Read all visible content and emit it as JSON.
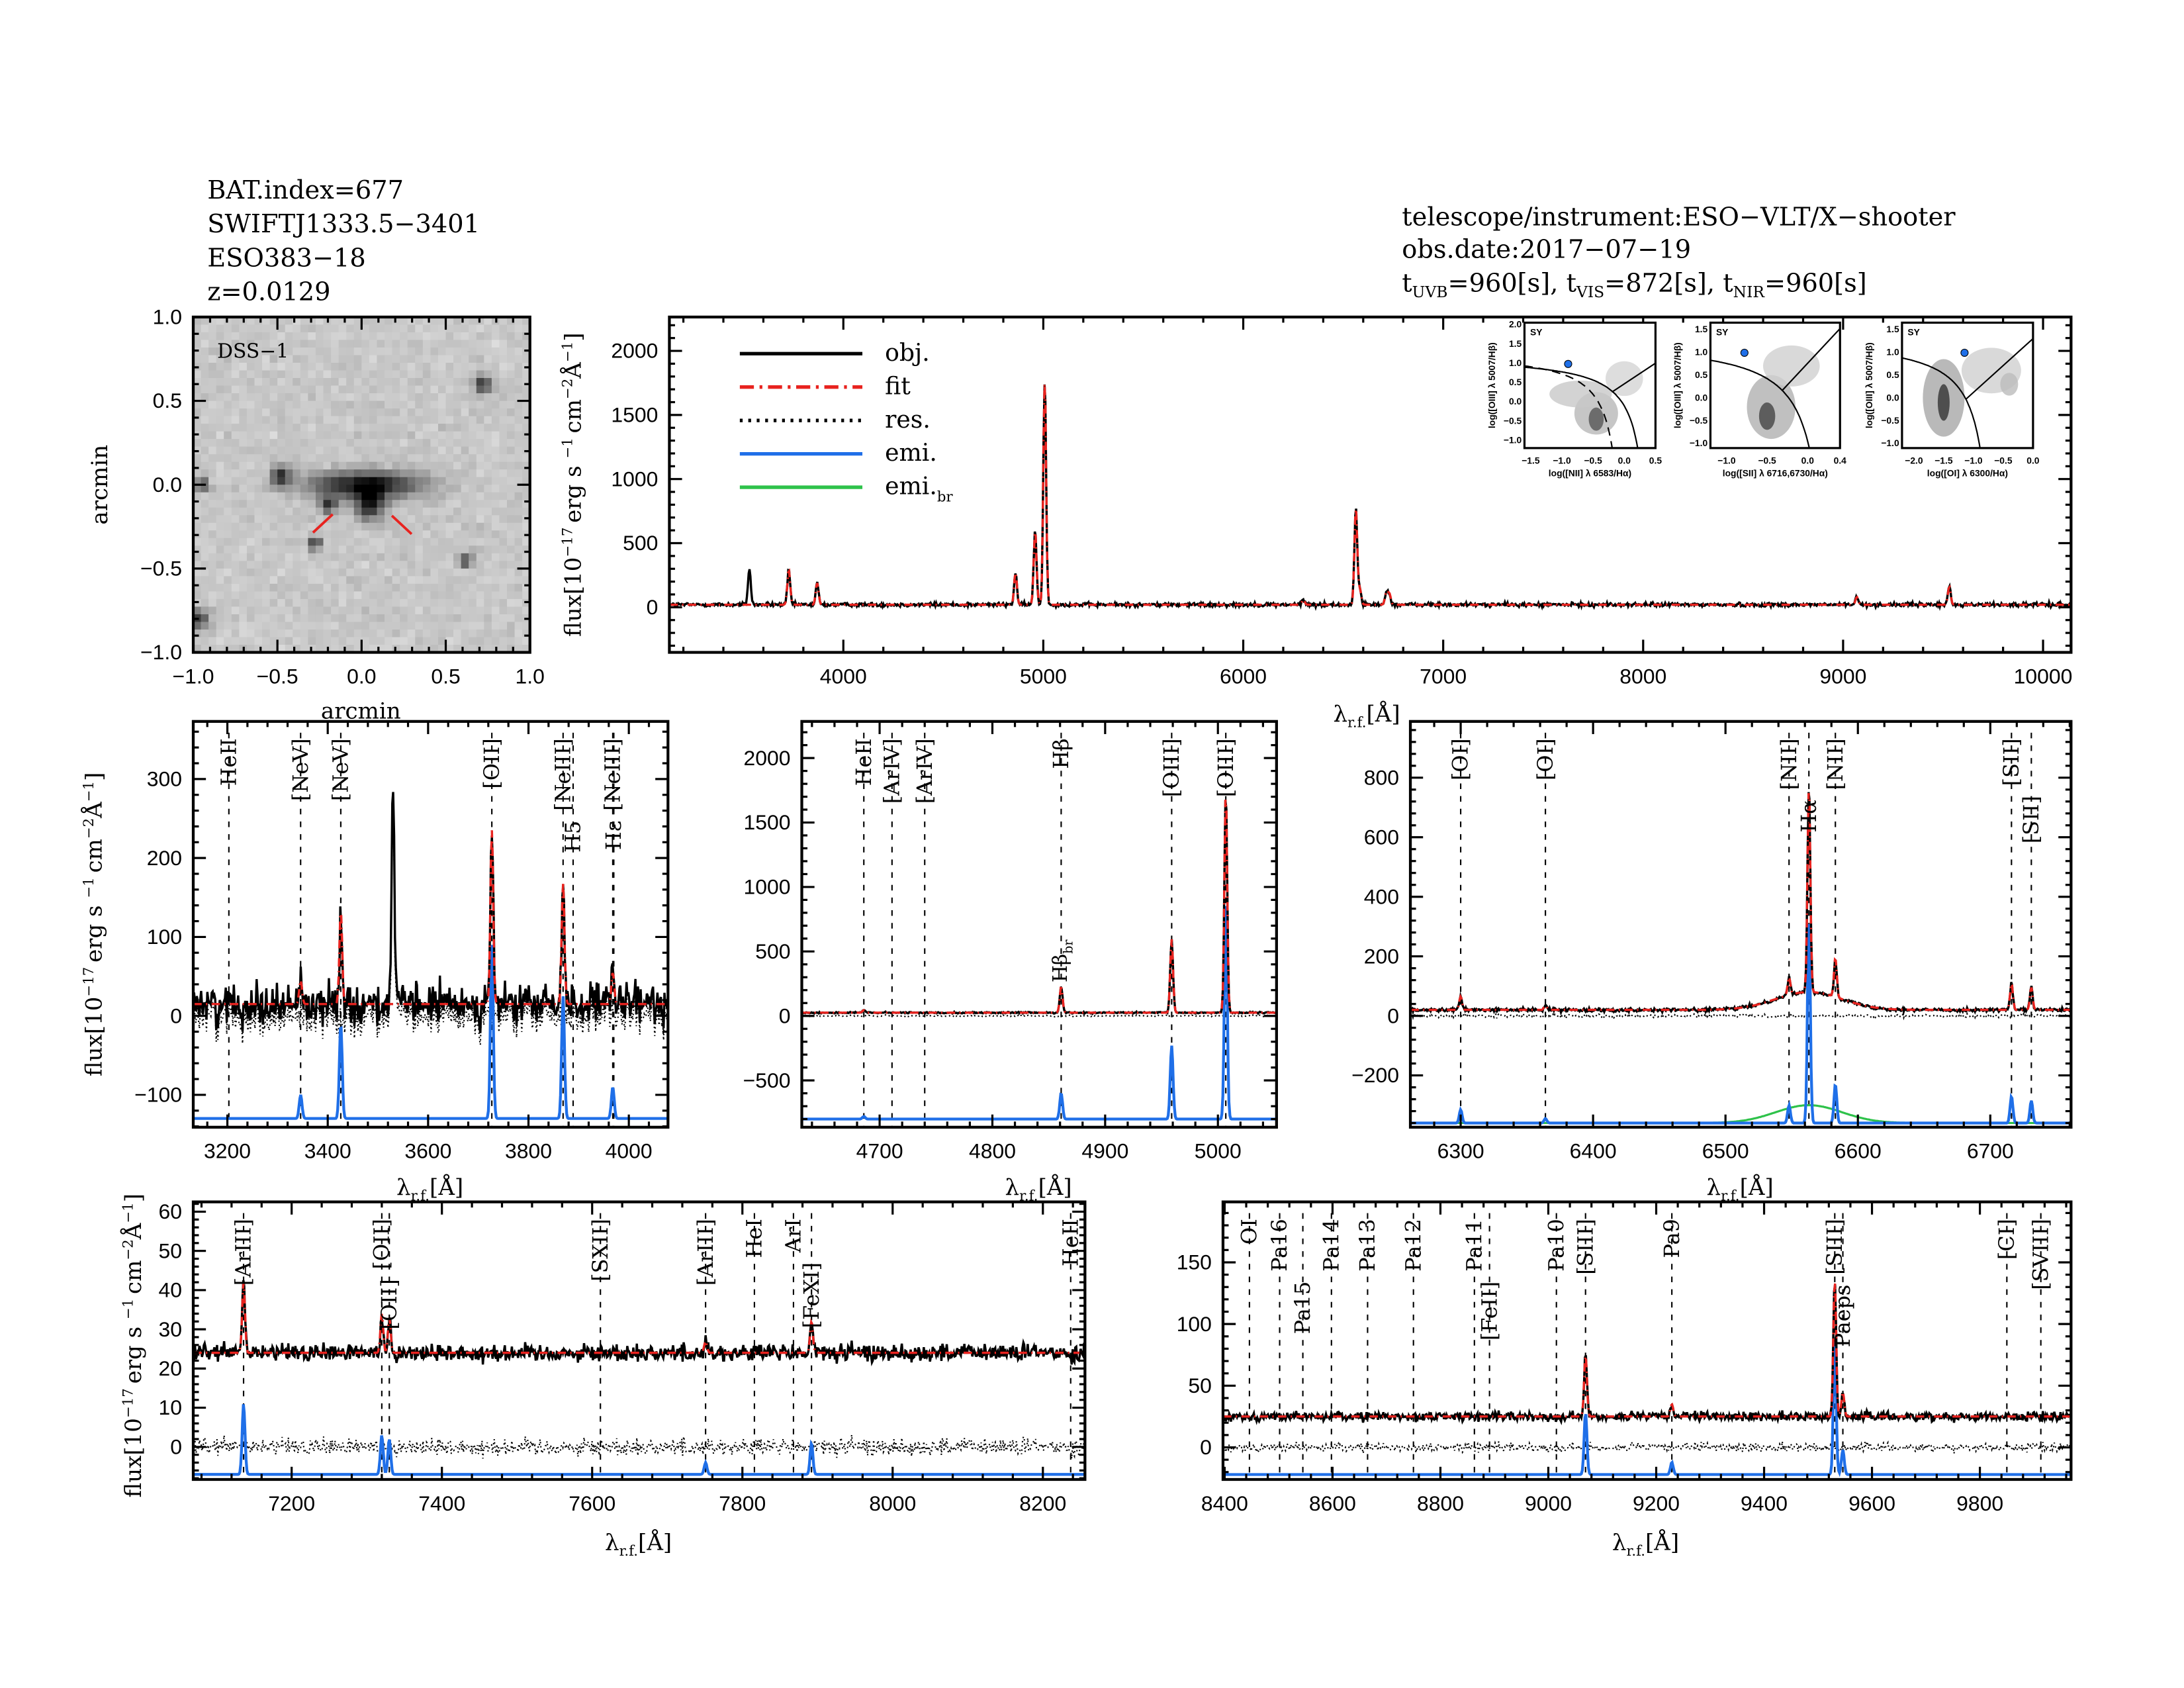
{
  "header": {
    "left": [
      "BAT.index=677",
      "SWIFTJ1333.5−3401",
      "ESO383−18",
      "z=0.0129"
    ],
    "instrument": "telescope/instrument:ESO−VLT/X−shooter",
    "obs_date": "obs.date:2017−07−19",
    "exposures": [
      {
        "t": "t",
        "sub": "UVB",
        "val": "=960[s], "
      },
      {
        "t": "t",
        "sub": "VIS",
        "val": "=872[s], "
      },
      {
        "t": "t",
        "sub": "NIR",
        "val": "=960[s]"
      }
    ]
  },
  "colors": {
    "obj": "#000000",
    "fit": "#e8231f",
    "res": "#000000",
    "emi": "#1f6fe8",
    "emi_br": "#2ec24a",
    "marker_red": "#e8231f"
  },
  "legend": [
    {
      "label": "obj.",
      "sub": "",
      "style": "solid",
      "color": "#000000"
    },
    {
      "label": "fit",
      "sub": "",
      "style": "dash-dot",
      "color": "#e8231f"
    },
    {
      "label": "res.",
      "sub": "",
      "style": "dotted",
      "color": "#000000"
    },
    {
      "label": "emi.",
      "sub": "",
      "style": "solid",
      "color": "#1f6fe8"
    },
    {
      "label": "emi.",
      "sub": "br",
      "style": "solid",
      "color": "#2ec24a"
    }
  ],
  "axis_text": {
    "xlabel": {
      "symbol": "λ",
      "sub": "r.f.",
      "unit": "[Å]"
    },
    "ylabel": {
      "a": "flux[10",
      "e1": "−17",
      "b": "erg s",
      "e2": "−1",
      "c": "cm",
      "e3": "−2",
      "d": "Å",
      "e4": "−1",
      "f": "]"
    },
    "arcmin": "arcmin"
  },
  "dss": {
    "label": "DSS−1",
    "xlim": [
      -1.0,
      1.0
    ],
    "ylim": [
      -1.0,
      1.0
    ],
    "ticks": [
      -1.0,
      -0.5,
      0.0,
      0.5,
      1.0
    ],
    "tick_labels": [
      "−1.0",
      "−0.5",
      "0.0",
      "0.5",
      "1.0"
    ]
  },
  "chart_data": [
    {
      "id": "full",
      "type": "line",
      "xlim": [
        3130,
        10140
      ],
      "ylim": [
        -352,
        2264
      ],
      "xticks": [
        4000,
        5000,
        6000,
        7000,
        8000,
        9000,
        10000
      ],
      "yticks": [
        0,
        500,
        1000,
        1500,
        2000
      ],
      "continuum": 20,
      "lines": [
        [
          3530,
          280,
          "obj"
        ],
        [
          3727,
          270
        ],
        [
          3869,
          170
        ],
        [
          4861,
          250
        ],
        [
          4959,
          580
        ],
        [
          5007,
          1750
        ],
        [
          6300,
          40
        ],
        [
          6563,
          760
        ],
        [
          6583,
          120
        ],
        [
          6716,
          100
        ],
        [
          6731,
          80
        ],
        [
          9069,
          60
        ],
        [
          9531,
          140
        ]
      ],
      "markers": []
    },
    {
      "id": "uvb",
      "type": "line",
      "xlim": [
        3132,
        4078
      ],
      "ylim": [
        -141,
        373
      ],
      "xticks": [
        3200,
        3400,
        3600,
        3800,
        4000
      ],
      "yticks": [
        -100,
        0,
        100,
        200,
        300
      ],
      "continuum": 15,
      "noise": 18,
      "emission_baseline": -130,
      "lines": [
        [
          3346,
          30
        ],
        [
          3426,
          120
        ],
        [
          3530,
          265,
          "obj"
        ],
        [
          3727,
          220
        ],
        [
          3869,
          155
        ],
        [
          3968,
          40
        ]
      ],
      "markers": [
        {
          "wl": 3203,
          "label": "HeII",
          "color": "black"
        },
        {
          "wl": 3346,
          "label": "[NeV]",
          "color": "black"
        },
        {
          "wl": 3426,
          "label": "[NeV]",
          "color": "black"
        },
        {
          "wl": 3727,
          "label": "[OII]",
          "color": "black"
        },
        {
          "wl": 3869,
          "label": "[NeIII]",
          "color": "black"
        },
        {
          "wl": 3889,
          "label": "H5",
          "color": "black"
        },
        {
          "wl": 3968,
          "label": "[NeIII]",
          "color": "black"
        },
        {
          "wl": 3970,
          "label": "Hε",
          "color": "black"
        }
      ]
    },
    {
      "id": "hbeta",
      "type": "line",
      "xlim": [
        4631,
        5052
      ],
      "ylim": [
        -863,
        2284
      ],
      "xticks": [
        4700,
        4800,
        4900,
        5000
      ],
      "yticks": [
        -500,
        0,
        500,
        1000,
        1500,
        2000
      ],
      "continuum": 25,
      "noise": 4,
      "emission_baseline": -800,
      "lines": [
        [
          4686,
          20
        ],
        [
          4861,
          200
        ],
        [
          4959,
          570
        ],
        [
          5007,
          1700
        ]
      ],
      "annotation": {
        "wl": 4861,
        "text": "Hβ",
        "sub": "br"
      },
      "markers": [
        {
          "wl": 4686,
          "label": "HeII",
          "color": "black"
        },
        {
          "wl": 4711,
          "label": "[ArIV]",
          "color": "black"
        },
        {
          "wl": 4740,
          "label": "[ArIV]",
          "color": "black"
        },
        {
          "wl": 4861,
          "label": "Hβ",
          "color": "black"
        },
        {
          "wl": 4959,
          "label": "[OIII]",
          "color": "black"
        },
        {
          "wl": 5007,
          "label": "[OIII]",
          "color": "black"
        }
      ]
    },
    {
      "id": "halpha",
      "type": "line",
      "xlim": [
        6262,
        6761
      ],
      "ylim": [
        -374,
        989
      ],
      "xticks": [
        6300,
        6400,
        6500,
        6600,
        6700
      ],
      "yticks": [
        -200,
        0,
        200,
        400,
        600,
        800
      ],
      "continuum": 20,
      "noise": 4,
      "emission_baseline": -360,
      "lines": [
        [
          6300,
          45
        ],
        [
          6364,
          15
        ],
        [
          6548,
          60
        ],
        [
          6563,
          690
        ],
        [
          6583,
          130
        ],
        [
          6716,
          90
        ],
        [
          6731,
          75
        ]
      ],
      "broad_lines": [
        [
          6563,
          60,
          25
        ]
      ],
      "markers": [
        {
          "wl": 6300,
          "label": "[OI]",
          "color": "black"
        },
        {
          "wl": 6364,
          "label": "[OI]",
          "color": "black"
        },
        {
          "wl": 6548,
          "label": "[NII]",
          "color": "black"
        },
        {
          "wl": 6563,
          "label": "Hα",
          "color": "black"
        },
        {
          "wl": 6583,
          "label": "[NII]",
          "color": "black"
        },
        {
          "wl": 6716,
          "label": "[SII]",
          "color": "black"
        },
        {
          "wl": 6731,
          "label": "[SII]",
          "color": "black"
        }
      ]
    },
    {
      "id": "vis_red",
      "type": "line",
      "xlim": [
        7069,
        8256
      ],
      "ylim": [
        -8.3,
        62.5
      ],
      "xticks": [
        7200,
        7400,
        7600,
        7800,
        8000,
        8200
      ],
      "yticks": [
        0,
        10,
        20,
        30,
        40,
        50,
        60
      ],
      "continuum": 24,
      "noise": 1.6,
      "emission_baseline": -7,
      "lines": [
        [
          7136,
          18
        ],
        [
          7320,
          10
        ],
        [
          7330,
          9
        ],
        [
          7751,
          3
        ],
        [
          7892,
          8
        ]
      ],
      "markers": [
        {
          "wl": 7136,
          "label": "[ArIII]",
          "color": "black"
        },
        {
          "wl": 7320,
          "label": "[OII]",
          "color": "black"
        },
        {
          "wl": 7330,
          "label": "[OII]",
          "color": "black"
        },
        {
          "wl": 7611,
          "label": "[SXII]",
          "color": "red"
        },
        {
          "wl": 7751,
          "label": "[ArIII]",
          "color": "red"
        },
        {
          "wl": 7816,
          "label": "HeI",
          "color": "red"
        },
        {
          "wl": 7868,
          "label": "ArI",
          "color": "red"
        },
        {
          "wl": 7892,
          "label": "[FeXI]",
          "color": "black"
        },
        {
          "wl": 8237,
          "label": "HeII",
          "color": "red"
        }
      ]
    },
    {
      "id": "nir",
      "type": "line",
      "xlim": [
        8397,
        9969
      ],
      "ylim": [
        -26,
        199
      ],
      "xticks": [
        8400,
        8600,
        8800,
        9000,
        9200,
        9400,
        9600,
        9800
      ],
      "yticks": [
        0,
        50,
        100,
        150
      ],
      "continuum": 25,
      "noise": 2.5,
      "emission_baseline": -22,
      "lines": [
        [
          9069,
          50
        ],
        [
          9229,
          10
        ],
        [
          9531,
          110
        ],
        [
          9546,
          20
        ]
      ],
      "markers": [
        {
          "wl": 8446,
          "label": "OI",
          "color": "black"
        },
        {
          "wl": 8502,
          "label": "Pa16",
          "color": "red"
        },
        {
          "wl": 8545,
          "label": "Pa15",
          "color": "red"
        },
        {
          "wl": 8598,
          "label": "Pa14",
          "color": "red"
        },
        {
          "wl": 8665,
          "label": "Pa13",
          "color": "red"
        },
        {
          "wl": 8750,
          "label": "Pa12",
          "color": "red"
        },
        {
          "wl": 8863,
          "label": "Pa11",
          "color": "black"
        },
        {
          "wl": 8891,
          "label": "[FeII]",
          "color": "red"
        },
        {
          "wl": 9015,
          "label": "Pa10",
          "color": "black"
        },
        {
          "wl": 9069,
          "label": "[SIII]",
          "color": "black"
        },
        {
          "wl": 9229,
          "label": "Pa9",
          "color": "black"
        },
        {
          "wl": 9531,
          "label": "[SIII]",
          "color": "black"
        },
        {
          "wl": 9546,
          "label": "Paeps",
          "color": "black"
        },
        {
          "wl": 9850,
          "label": "[CI]",
          "color": "red"
        },
        {
          "wl": 9913,
          "label": "[SVIII]",
          "color": "black"
        }
      ]
    }
  ],
  "bpt": [
    {
      "id": "nii",
      "class_label": "SY",
      "xlabel": "log([NII] λ 6583/Hα)",
      "ylabel": "log([OIII] λ 5007/Hβ)",
      "xlim": [
        -1.6,
        0.5
      ],
      "ylim": [
        -1.2,
        2.05
      ],
      "xticks": [
        -1.5,
        -1.0,
        -0.5,
        0.0,
        0.5
      ],
      "xtick_labels": [
        "−1.5",
        "−1.0",
        "−0.5",
        "0.0",
        "0.5"
      ],
      "yticks": [
        -1.0,
        -0.5,
        0.0,
        0.5,
        1.0,
        1.5,
        2.0
      ],
      "ytick_labels": [
        "−1.0",
        "−0.5",
        "0.0",
        "0.5",
        "1.0",
        "1.5",
        "2.0"
      ],
      "point": [
        -0.9,
        0.98
      ]
    },
    {
      "id": "sii",
      "class_label": "SY",
      "xlabel": "log([SII] λ 6716,6730/Hα)",
      "ylabel": "log([OIII] λ 5007/Hβ)",
      "xlim": [
        -1.2,
        0.4
      ],
      "ylim": [
        -1.1,
        1.65
      ],
      "xticks": [
        -1.0,
        -0.5,
        0.0,
        0.4
      ],
      "xtick_labels": [
        "−1.0",
        "−0.5",
        "0.0",
        "0.4"
      ],
      "yticks": [
        -1.0,
        -0.5,
        0.0,
        0.5,
        1.0,
        1.5
      ],
      "ytick_labels": [
        "−1.0",
        "−0.5",
        "0.0",
        "0.5",
        "1.0",
        "1.5"
      ],
      "point": [
        -0.78,
        0.99
      ]
    },
    {
      "id": "oi",
      "class_label": "SY",
      "xlabel": "log([OI] λ 6300/Hα)",
      "ylabel": "log([OIII] λ 5007/Hβ)",
      "xlim": [
        -2.2,
        0.0
      ],
      "ylim": [
        -1.1,
        1.65
      ],
      "xticks": [
        -2.0,
        -1.5,
        -1.0,
        -0.5,
        0.0
      ],
      "xtick_labels": [
        "−2.0",
        "−1.5",
        "−1.0",
        "−0.5",
        "0.0"
      ],
      "yticks": [
        -1.0,
        -0.5,
        0.0,
        0.5,
        1.0,
        1.5
      ],
      "ytick_labels": [
        "−1.0",
        "−0.5",
        "0.0",
        "0.5",
        "1.0",
        "1.5"
      ],
      "point": [
        -1.15,
        0.99
      ]
    }
  ]
}
